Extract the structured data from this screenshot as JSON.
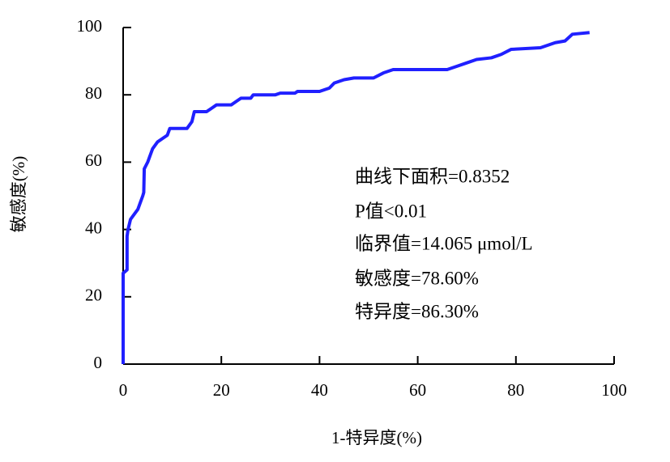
{
  "chart_data": {
    "type": "line",
    "xlabel": "1-特异度(%)",
    "ylabel": "敏感度(%)",
    "x": [
      0,
      0,
      0.8,
      0.8,
      1,
      1.5,
      2,
      3,
      3.5,
      4,
      4.2,
      4.3,
      5,
      5.5,
      6,
      7,
      8,
      9,
      9.5,
      13,
      14,
      14.5,
      17,
      18,
      19,
      22,
      23,
      24,
      26,
      26.5,
      31,
      32,
      35,
      35.5,
      40,
      42,
      43,
      45,
      47,
      51,
      53,
      55,
      66,
      68,
      70,
      72,
      75,
      77,
      79,
      85,
      88,
      90,
      91.5,
      95
    ],
    "values": [
      0,
      27,
      28,
      38,
      40,
      43,
      44,
      46,
      48,
      50,
      51,
      58,
      60,
      62,
      64,
      66,
      67,
      68,
      70,
      70,
      72,
      75,
      75,
      76,
      77,
      77,
      78,
      79,
      79,
      80,
      80,
      80.5,
      80.5,
      81,
      81,
      82,
      83.5,
      84.5,
      85,
      85,
      86.5,
      87.5,
      87.5,
      88.5,
      89.5,
      90.5,
      91,
      92,
      93.5,
      94,
      95.5,
      96,
      98,
      98.5
    ],
    "color": "#2020ff",
    "xlim": [
      0,
      100
    ],
    "ylim": [
      0,
      100
    ],
    "xticks": [
      0,
      20,
      40,
      60,
      80,
      100
    ],
    "yticks": [
      0,
      20,
      40,
      60,
      80,
      100
    ],
    "annotations": [
      "曲线下面积=0.8352",
      "P值<0.01",
      "临界值=14.065 μmol/L",
      "敏感度=78.60%",
      "特异度=86.30%"
    ]
  }
}
